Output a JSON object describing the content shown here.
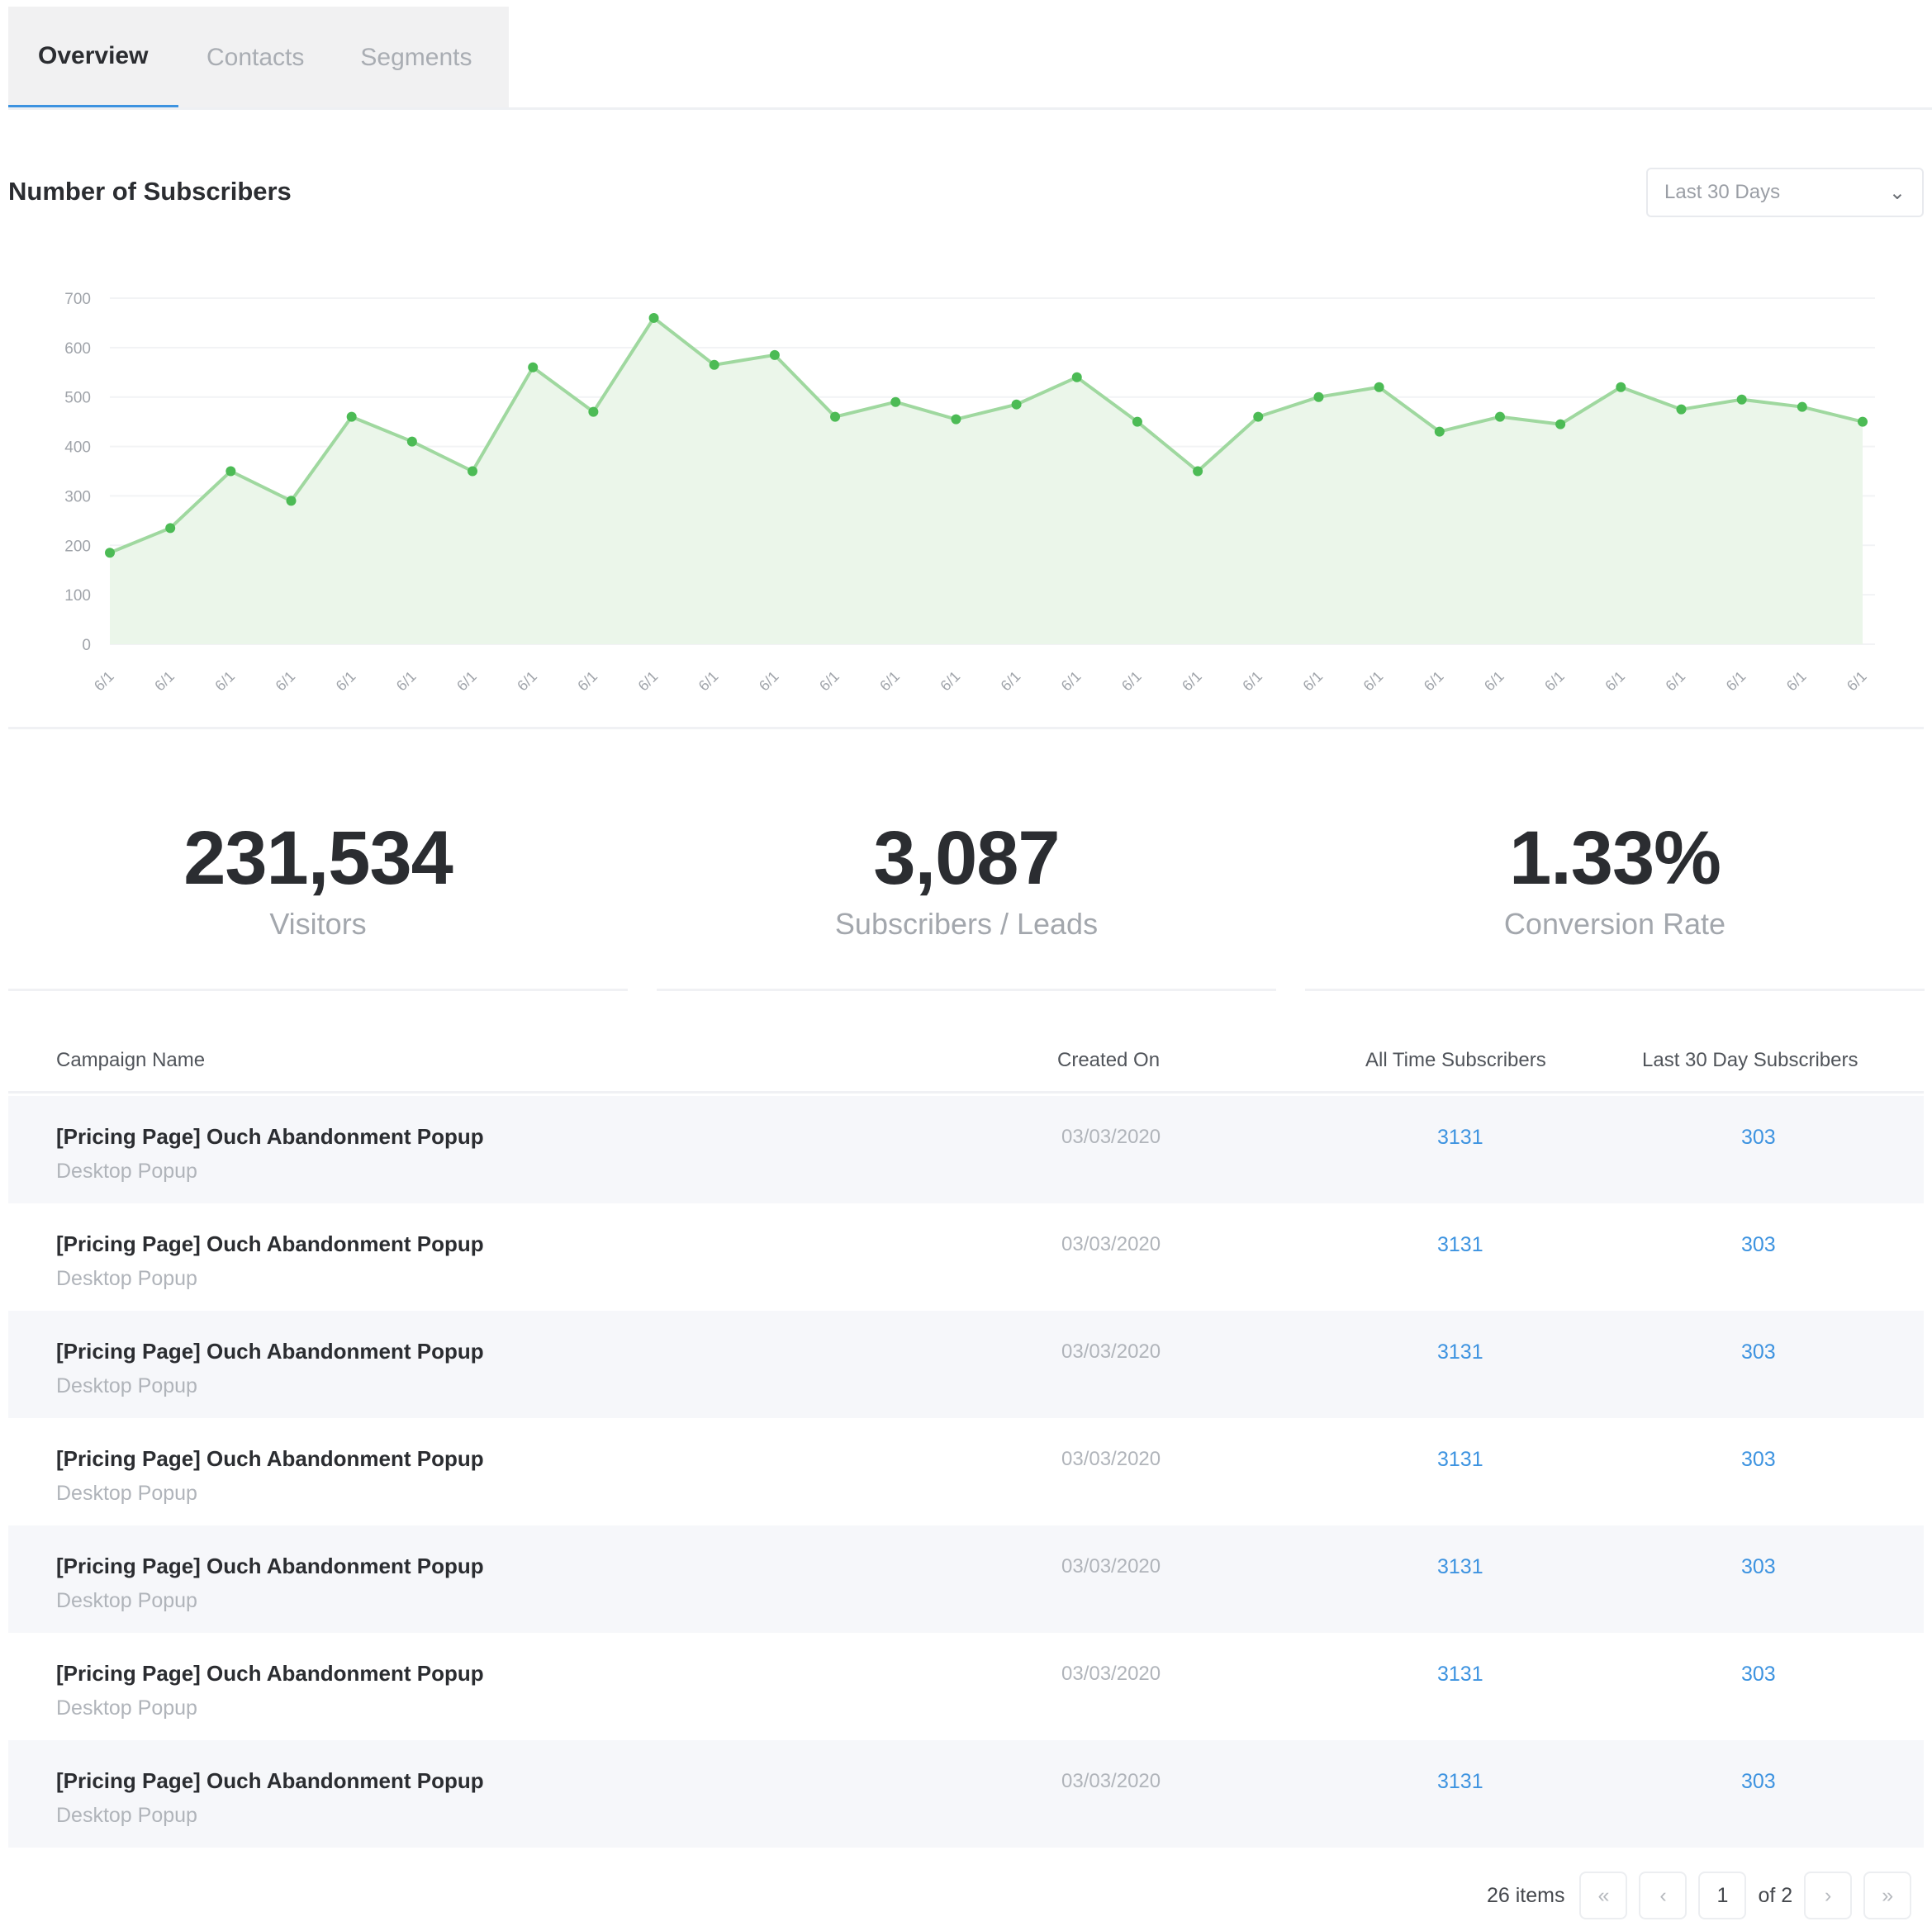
{
  "tabs": [
    {
      "label": "Overview",
      "active": true
    },
    {
      "label": "Contacts"
    },
    {
      "label": "Segments"
    }
  ],
  "section_title": "Number of Subscribers",
  "range_select": {
    "value": "Last 30 Days"
  },
  "colors": {
    "accent": "#3d93e0",
    "series": "#4cbb55",
    "fill": "#ebf6ea"
  },
  "chart_data": {
    "type": "area",
    "title": "",
    "ylim": [
      0,
      700
    ],
    "yticks": [
      0,
      100,
      200,
      300,
      400,
      500,
      600,
      700
    ],
    "grid": true,
    "x": [
      "6/1",
      "6/1",
      "6/1",
      "6/1",
      "6/1",
      "6/1",
      "6/1",
      "6/1",
      "6/1",
      "6/1",
      "6/1",
      "6/1",
      "6/1",
      "6/1",
      "6/1",
      "6/1",
      "6/1",
      "6/1",
      "6/1",
      "6/1",
      "6/1",
      "6/1",
      "6/1",
      "6/1",
      "6/1",
      "6/1",
      "6/1",
      "6/1",
      "6/1",
      "6/1"
    ],
    "series": [
      {
        "values": [
          185,
          235,
          350,
          290,
          460,
          410,
          350,
          560,
          470,
          660,
          565,
          585,
          460,
          490,
          455,
          485,
          540,
          450,
          350,
          460,
          500,
          520,
          430,
          460,
          445,
          520,
          475,
          495,
          480,
          450
        ]
      }
    ]
  },
  "stats": [
    {
      "value": "231,534",
      "label": "Visitors"
    },
    {
      "value": "3,087",
      "label": "Subscribers / Leads"
    },
    {
      "value": "1.33%",
      "label": "Conversion Rate"
    }
  ],
  "table": {
    "headers": [
      "Campaign Name",
      "Created On",
      "All Time Subscribers",
      "Last 30 Day Subscribers"
    ],
    "rows": [
      {
        "name": "[Pricing Page] Ouch Abandonment Popup",
        "type": "Desktop Popup",
        "created": "03/03/2020",
        "all_time": "3131",
        "last_30": "303"
      },
      {
        "name": "[Pricing Page] Ouch Abandonment Popup",
        "type": "Desktop Popup",
        "created": "03/03/2020",
        "all_time": "3131",
        "last_30": "303"
      },
      {
        "name": "[Pricing Page] Ouch Abandonment Popup",
        "type": "Desktop Popup",
        "created": "03/03/2020",
        "all_time": "3131",
        "last_30": "303"
      },
      {
        "name": "[Pricing Page] Ouch Abandonment Popup",
        "type": "Desktop Popup",
        "created": "03/03/2020",
        "all_time": "3131",
        "last_30": "303"
      },
      {
        "name": "[Pricing Page] Ouch Abandonment Popup",
        "type": "Desktop Popup",
        "created": "03/03/2020",
        "all_time": "3131",
        "last_30": "303"
      },
      {
        "name": "[Pricing Page] Ouch Abandonment Popup",
        "type": "Desktop Popup",
        "created": "03/03/2020",
        "all_time": "3131",
        "last_30": "303"
      },
      {
        "name": "[Pricing Page] Ouch Abandonment Popup",
        "type": "Desktop Popup",
        "created": "03/03/2020",
        "all_time": "3131",
        "last_30": "303"
      }
    ]
  },
  "pagination": {
    "items": "26 items",
    "page": "1",
    "of": "of 2",
    "first": "«",
    "prev": "‹",
    "next": "›",
    "last": "»"
  }
}
